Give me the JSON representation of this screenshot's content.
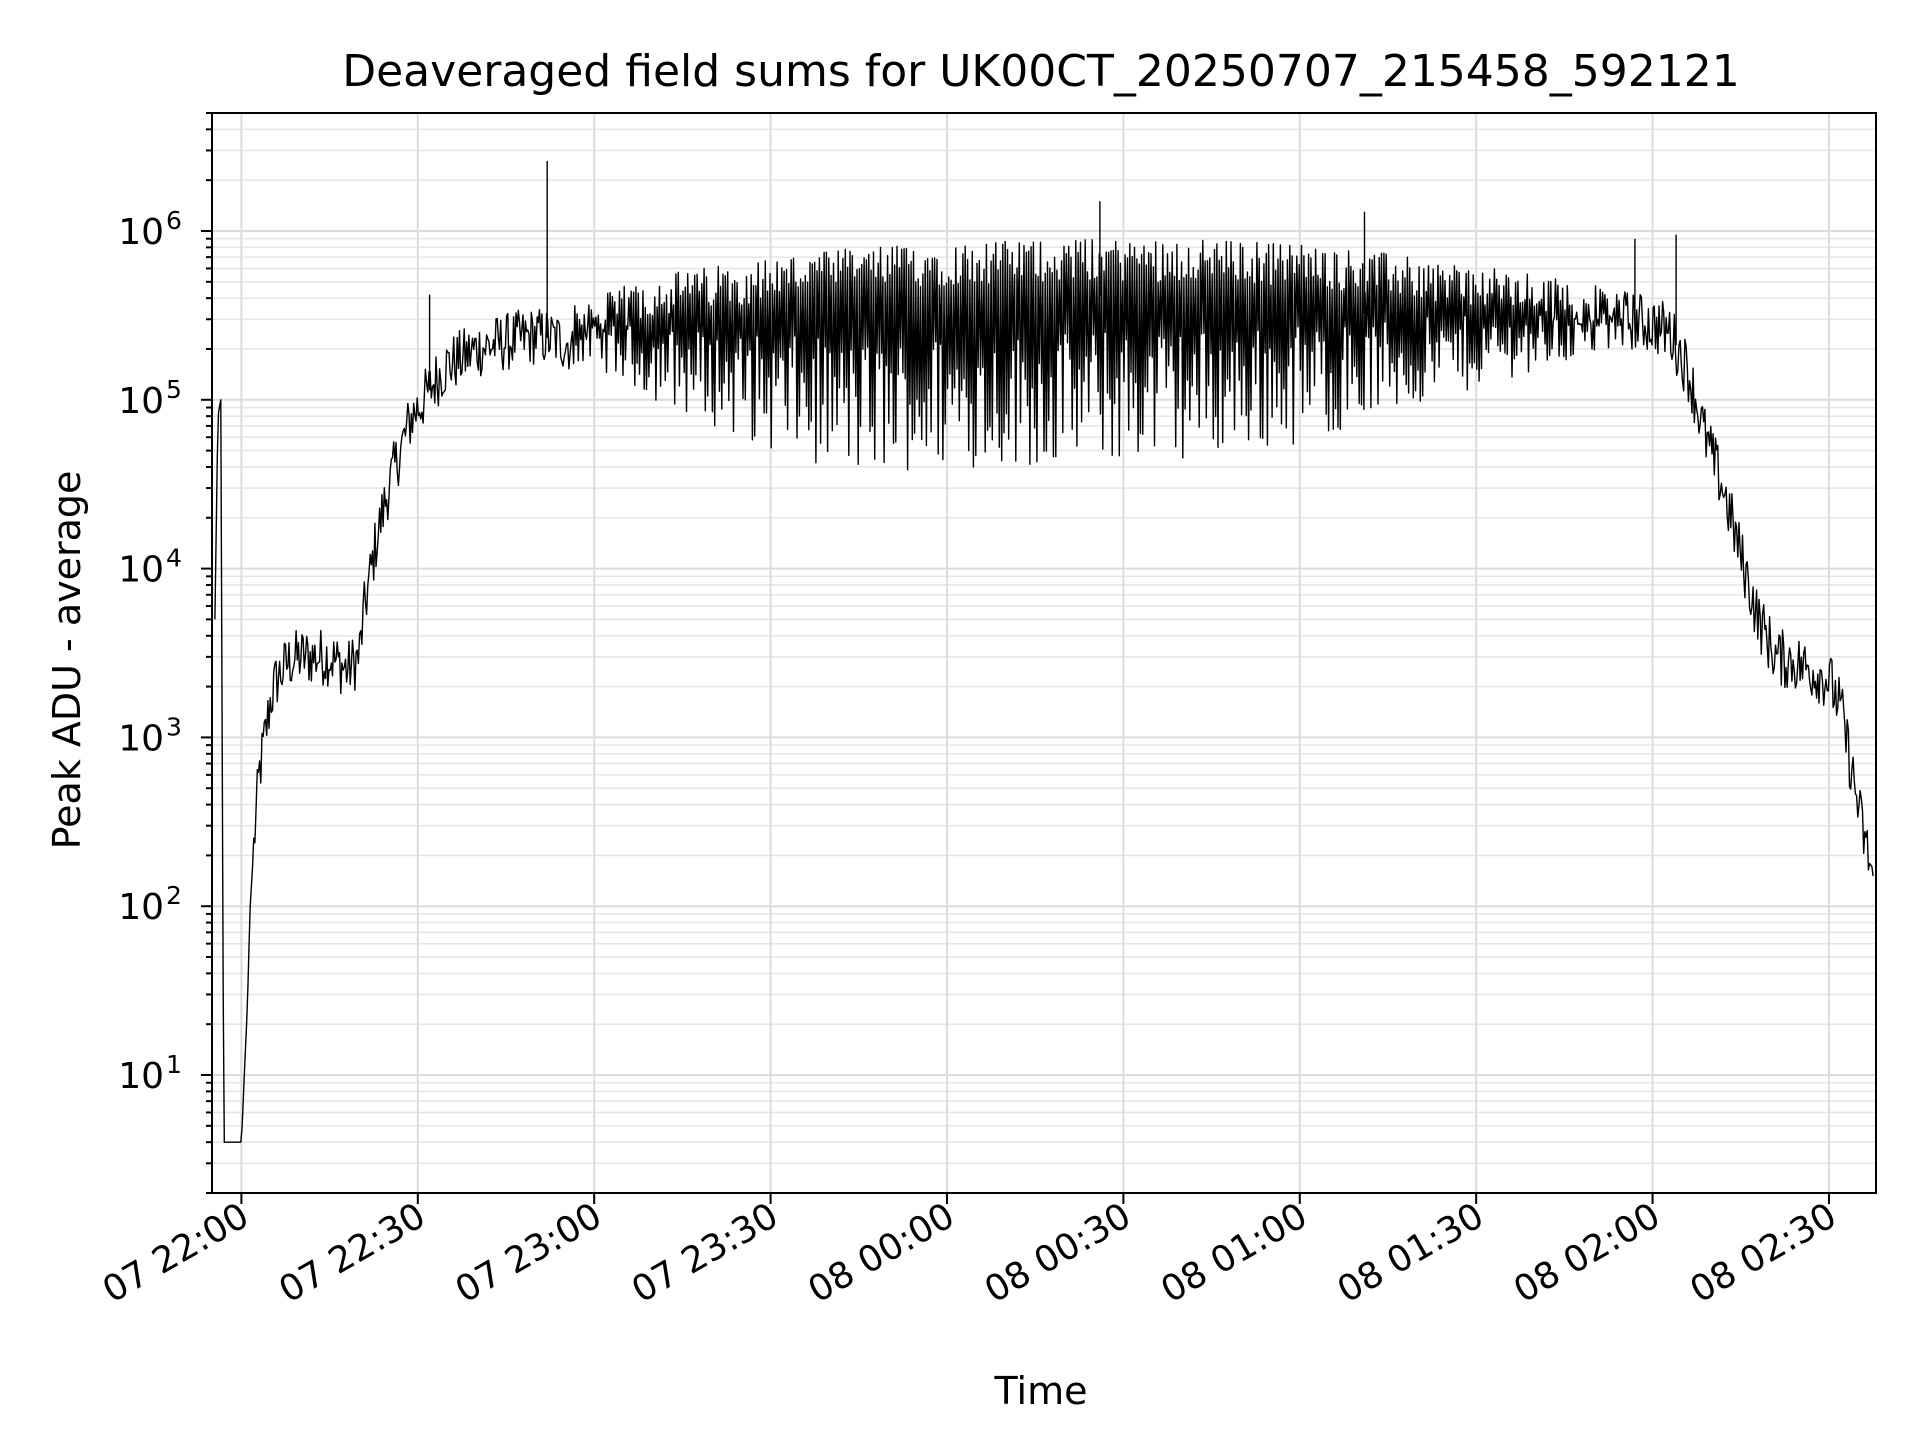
{
  "chart_data": {
    "type": "line",
    "title": "Deaveraged field sums for UK00CT_20250707_215458_592121",
    "xlabel": "Time",
    "ylabel": "Peak ADU - average",
    "yscale": "log",
    "ylim": [
      2,
      5000000
    ],
    "xlim": [
      "2025-07-07 21:55",
      "2025-07-08 02:38"
    ],
    "grid": true,
    "grid_minor": true,
    "x_ticks": [
      "07 22:00",
      "07 22:30",
      "07 23:00",
      "07 23:30",
      "08 00:00",
      "08 00:30",
      "08 01:00",
      "08 01:30",
      "08 02:00",
      "08 02:30"
    ],
    "y_ticks": [
      {
        "base": "10",
        "exp": "1",
        "value": 10
      },
      {
        "base": "10",
        "exp": "2",
        "value": 100
      },
      {
        "base": "10",
        "exp": "3",
        "value": 1000
      },
      {
        "base": "10",
        "exp": "4",
        "value": 10000
      },
      {
        "base": "10",
        "exp": "5",
        "value": 100000
      },
      {
        "base": "10",
        "exp": "6",
        "value": 1000000
      }
    ],
    "line_color": "#000000",
    "series": [
      {
        "x": [
          "2025-07-07 21:55:30",
          "2025-07-07 21:56:00",
          "2025-07-07 21:56:30",
          "2025-07-07 21:57:00",
          "2025-07-07 21:57:30",
          "2025-07-07 21:58:00",
          "2025-07-07 21:59:00",
          "2025-07-07 22:00:00",
          "2025-07-07 22:01:00",
          "2025-07-07 22:01:30",
          "2025-07-07 22:02:00",
          "2025-07-07 22:03:00",
          "2025-07-07 22:04:00",
          "2025-07-07 22:05:00",
          "2025-07-07 22:06:00",
          "2025-07-07 22:08:00",
          "2025-07-07 22:10:00",
          "2025-07-07 22:15:00",
          "2025-07-07 22:18:00",
          "2025-07-07 22:20:00",
          "2025-07-07 22:21:00",
          "2025-07-07 22:23:00",
          "2025-07-07 22:25:00",
          "2025-07-07 22:27:00",
          "2025-07-07 22:29:00",
          "2025-07-07 22:31:00",
          "2025-07-07 22:33:00",
          "2025-07-07 22:35:00",
          "2025-07-07 22:38:00",
          "2025-07-07 22:40:00",
          "2025-07-07 22:45:00",
          "2025-07-07 22:50:00",
          "2025-07-07 22:53:00",
          "2025-07-07 22:55:00",
          "2025-07-07 23:00:00",
          "2025-07-07 23:10:00",
          "2025-07-07 23:20:00",
          "2025-07-07 23:30:00",
          "2025-07-07 23:40:00",
          "2025-07-07 23:50:00",
          "2025-07-08 00:00:00",
          "2025-07-08 00:10:00",
          "2025-07-08 00:20:00",
          "2025-07-08 00:30:00",
          "2025-07-08 00:40:00",
          "2025-07-08 00:50:00",
          "2025-07-08 01:00:00",
          "2025-07-08 01:10:00",
          "2025-07-08 01:20:00",
          "2025-07-08 01:30:00",
          "2025-07-08 01:40:00",
          "2025-07-08 01:50:00",
          "2025-07-08 01:55:00",
          "2025-07-08 02:00:00",
          "2025-07-08 02:03:00",
          "2025-07-08 02:06:00",
          "2025-07-08 02:09:00",
          "2025-07-08 02:12:00",
          "2025-07-08 02:15:00",
          "2025-07-08 02:18:00",
          "2025-07-08 02:21:00",
          "2025-07-08 02:24:00",
          "2025-07-08 02:27:00",
          "2025-07-08 02:30:00",
          "2025-07-08 02:32:00",
          "2025-07-08 02:34:00",
          "2025-07-08 02:36:00",
          "2025-07-08 02:37:30"
        ],
        "y": [
          5000,
          80000,
          100000,
          4,
          4,
          4,
          4,
          4,
          25,
          100,
          200,
          600,
          1000,
          1700,
          2200,
          2800,
          3000,
          3000,
          2500,
          3000,
          6000,
          15000,
          30000,
          50000,
          80000,
          100000,
          130000,
          160000,
          180000,
          200000,
          220000,
          240000,
          230000,
          220000,
          200000,
          250000,
          280000,
          300000,
          320000,
          350000,
          370000,
          380000,
          400000,
          420000,
          400000,
          380000,
          360000,
          330000,
          300000,
          270000,
          260000,
          270000,
          300000,
          280000,
          250000,
          150000,
          60000,
          30000,
          12000,
          5000,
          3000,
          2800,
          2500,
          2200,
          1500,
          600,
          250,
          150
        ]
      }
    ],
    "envelope_note_visible": false,
    "spikes": [
      {
        "x": "2025-07-07 22:32:00",
        "y": 420000
      },
      {
        "x": "2025-07-07 22:52:00",
        "y": 2600000
      },
      {
        "x": "2025-07-08 00:26:00",
        "y": 1500000
      },
      {
        "x": "2025-07-08 01:11:00",
        "y": 1300000
      },
      {
        "x": "2025-07-08 01:57:00",
        "y": 900000
      },
      {
        "x": "2025-07-08 02:04:00",
        "y": 950000
      }
    ],
    "lower_envelope": [
      {
        "x": "2025-07-07 23:00:00",
        "y": 160000
      },
      {
        "x": "2025-07-07 23:10:00",
        "y": 100000
      },
      {
        "x": "2025-07-07 23:30:00",
        "y": 50000
      },
      {
        "x": "2025-07-07 23:45:00",
        "y": 35000
      },
      {
        "x": "2025-07-08 00:00:00",
        "y": 40000
      },
      {
        "x": "2025-07-08 00:20:00",
        "y": 40000
      },
      {
        "x": "2025-07-08 00:40:00",
        "y": 45000
      },
      {
        "x": "2025-07-08 01:00:00",
        "y": 55000
      },
      {
        "x": "2025-07-08 01:20:00",
        "y": 90000
      },
      {
        "x": "2025-07-08 01:40:00",
        "y": 150000
      },
      {
        "x": "2025-07-08 01:55:00",
        "y": 200000
      }
    ],
    "upper_envelope": [
      {
        "x": "2025-07-07 23:00:00",
        "y": 400000
      },
      {
        "x": "2025-07-07 23:10:00",
        "y": 550000
      },
      {
        "x": "2025-07-07 23:30:00",
        "y": 700000
      },
      {
        "x": "2025-07-07 23:45:00",
        "y": 800000
      },
      {
        "x": "2025-07-08 00:00:00",
        "y": 850000
      },
      {
        "x": "2025-07-08 00:20:00",
        "y": 900000
      },
      {
        "x": "2025-07-08 00:40:00",
        "y": 900000
      },
      {
        "x": "2025-07-08 01:00:00",
        "y": 850000
      },
      {
        "x": "2025-07-08 01:20:00",
        "y": 700000
      },
      {
        "x": "2025-07-08 01:40:00",
        "y": 550000
      },
      {
        "x": "2025-07-08 01:55:00",
        "y": 450000
      }
    ]
  }
}
